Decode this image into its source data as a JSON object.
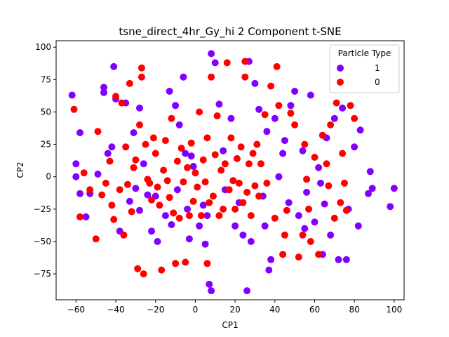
{
  "chart_data": {
    "type": "scatter",
    "title": "tsne_direct_4hr_Gy_hi 2 Component t-SNE",
    "xlabel": "CP1",
    "ylabel": "CP2",
    "xlim": [
      -70,
      105
    ],
    "ylim": [
      -95,
      105
    ],
    "xticks": [
      -60,
      -40,
      -20,
      0,
      20,
      40,
      60,
      80,
      100
    ],
    "yticks": [
      -75,
      -50,
      -25,
      0,
      25,
      50,
      75,
      100
    ],
    "grid": false,
    "legend": {
      "title": "Particle Type",
      "placement": "top-right"
    },
    "series": [
      {
        "name": "1",
        "color": "#8000ff",
        "points": [
          [
            -62,
            63
          ],
          [
            -58,
            34
          ],
          [
            -60,
            10
          ],
          [
            -60,
            0
          ],
          [
            -58,
            -13
          ],
          [
            -53,
            -13
          ],
          [
            -55,
            -31
          ],
          [
            -49,
            2
          ],
          [
            -46,
            69
          ],
          [
            -46,
            65
          ],
          [
            -44,
            18
          ],
          [
            -42,
            23
          ],
          [
            -41,
            85
          ],
          [
            -40,
            60
          ],
          [
            -38,
            -42
          ],
          [
            -35,
            57
          ],
          [
            -33,
            -19
          ],
          [
            -31,
            34
          ],
          [
            -30,
            -9
          ],
          [
            -28,
            53
          ],
          [
            -28,
            -26
          ],
          [
            -26,
            10
          ],
          [
            -24,
            -14
          ],
          [
            -22,
            -42
          ],
          [
            -20,
            -15
          ],
          [
            -19,
            -50
          ],
          [
            -15,
            -30
          ],
          [
            -13,
            66
          ],
          [
            -12,
            -37
          ],
          [
            -10,
            55
          ],
          [
            -9,
            -10
          ],
          [
            -8,
            40
          ],
          [
            -6,
            77
          ],
          [
            -5,
            18
          ],
          [
            -4,
            -25
          ],
          [
            -3,
            -48
          ],
          [
            -2,
            16
          ],
          [
            -1,
            8
          ],
          [
            2,
            -38
          ],
          [
            4,
            -22
          ],
          [
            5,
            -52
          ],
          [
            6,
            -30
          ],
          [
            7,
            -83
          ],
          [
            8,
            -88
          ],
          [
            8,
            95
          ],
          [
            10,
            88
          ],
          [
            12,
            56
          ],
          [
            14,
            20
          ],
          [
            15,
            -10
          ],
          [
            18,
            45
          ],
          [
            20,
            -38
          ],
          [
            22,
            -20
          ],
          [
            24,
            -45
          ],
          [
            26,
            -88
          ],
          [
            27,
            89
          ],
          [
            28,
            -50
          ],
          [
            30,
            72
          ],
          [
            32,
            52
          ],
          [
            34,
            -15
          ],
          [
            35,
            -38
          ],
          [
            36,
            35
          ],
          [
            37,
            -72
          ],
          [
            38,
            -64
          ],
          [
            40,
            45
          ],
          [
            42,
            0
          ],
          [
            44,
            18
          ],
          [
            45,
            28
          ],
          [
            47,
            -20
          ],
          [
            48,
            55
          ],
          [
            50,
            66
          ],
          [
            52,
            -30
          ],
          [
            54,
            20
          ],
          [
            55,
            -40
          ],
          [
            56,
            -12
          ],
          [
            58,
            63
          ],
          [
            60,
            -35
          ],
          [
            62,
            7
          ],
          [
            63,
            -5
          ],
          [
            64,
            -60
          ],
          [
            65,
            -21
          ],
          [
            66,
            30
          ],
          [
            68,
            -45
          ],
          [
            70,
            45
          ],
          [
            72,
            -64
          ],
          [
            74,
            53
          ],
          [
            76,
            -64
          ],
          [
            77,
            -25
          ],
          [
            80,
            23
          ],
          [
            82,
            -38
          ],
          [
            83,
            36
          ],
          [
            87,
            -13
          ],
          [
            88,
            4
          ],
          [
            89,
            -9
          ],
          [
            98,
            -23
          ],
          [
            100,
            -9
          ]
        ]
      },
      {
        "name": "0",
        "color": "#ff0000",
        "points": [
          [
            -61,
            52
          ],
          [
            -58,
            -31
          ],
          [
            -56,
            3
          ],
          [
            -53,
            -10
          ],
          [
            -50,
            -48
          ],
          [
            -49,
            35
          ],
          [
            -47,
            -14
          ],
          [
            -45,
            -5
          ],
          [
            -43,
            12
          ],
          [
            -42,
            -22
          ],
          [
            -41,
            -33
          ],
          [
            -40,
            62
          ],
          [
            -38,
            -10
          ],
          [
            -37,
            57
          ],
          [
            -36,
            -45
          ],
          [
            -35,
            23
          ],
          [
            -34,
            -6
          ],
          [
            -33,
            72
          ],
          [
            -32,
            -27
          ],
          [
            -31,
            7
          ],
          [
            -30,
            13
          ],
          [
            -29,
            -71
          ],
          [
            -28,
            40
          ],
          [
            -27,
            77
          ],
          [
            -27,
            84
          ],
          [
            -26,
            -75
          ],
          [
            -25,
            25
          ],
          [
            -24,
            -2
          ],
          [
            -23,
            -5
          ],
          [
            -22,
            -18
          ],
          [
            -21,
            30
          ],
          [
            -20,
            18
          ],
          [
            -19,
            -8
          ],
          [
            -18,
            -22
          ],
          [
            -17,
            -72
          ],
          [
            -16,
            5
          ],
          [
            -15,
            28
          ],
          [
            -14,
            -3
          ],
          [
            -13,
            -16
          ],
          [
            -12,
            45
          ],
          [
            -11,
            -28
          ],
          [
            -10,
            -67
          ],
          [
            -9,
            12
          ],
          [
            -8,
            -32
          ],
          [
            -7,
            22
          ],
          [
            -6,
            -4
          ],
          [
            -5,
            -66
          ],
          [
            -4,
            7
          ],
          [
            -3,
            -30
          ],
          [
            -2,
            26
          ],
          [
            -1,
            -19
          ],
          [
            0,
            3
          ],
          [
            1,
            -8
          ],
          [
            2,
            50
          ],
          [
            3,
            -30
          ],
          [
            4,
            13
          ],
          [
            5,
            -4
          ],
          [
            6,
            -67
          ],
          [
            6,
            30
          ],
          [
            7,
            -20
          ],
          [
            8,
            77
          ],
          [
            9,
            -15
          ],
          [
            10,
            17
          ],
          [
            11,
            47
          ],
          [
            12,
            -30
          ],
          [
            13,
            5
          ],
          [
            14,
            -25
          ],
          [
            15,
            10
          ],
          [
            16,
            88
          ],
          [
            17,
            -10
          ],
          [
            18,
            30
          ],
          [
            19,
            -3
          ],
          [
            20,
            -25
          ],
          [
            21,
            14
          ],
          [
            22,
            -5
          ],
          [
            23,
            23
          ],
          [
            24,
            -20
          ],
          [
            25,
            77
          ],
          [
            25,
            89
          ],
          [
            26,
            -12
          ],
          [
            27,
            10
          ],
          [
            28,
            -30
          ],
          [
            29,
            18
          ],
          [
            30,
            -7
          ],
          [
            31,
            25
          ],
          [
            32,
            -15
          ],
          [
            33,
            10
          ],
          [
            35,
            48
          ],
          [
            36,
            -5
          ],
          [
            38,
            70
          ],
          [
            40,
            -32
          ],
          [
            41,
            85
          ],
          [
            42,
            55
          ],
          [
            44,
            -60
          ],
          [
            45,
            -45
          ],
          [
            46,
            -26
          ],
          [
            48,
            49
          ],
          [
            50,
            40
          ],
          [
            52,
            -62
          ],
          [
            54,
            -45
          ],
          [
            55,
            25
          ],
          [
            56,
            -2
          ],
          [
            57,
            -25
          ],
          [
            58,
            -50
          ],
          [
            60,
            15
          ],
          [
            62,
            -60
          ],
          [
            64,
            32
          ],
          [
            66,
            10
          ],
          [
            67,
            -7
          ],
          [
            68,
            40
          ],
          [
            70,
            -32
          ],
          [
            71,
            57
          ],
          [
            73,
            -20
          ],
          [
            74,
            18
          ],
          [
            75,
            -5
          ],
          [
            76,
            -26
          ],
          [
            78,
            55
          ],
          [
            80,
            45
          ]
        ]
      }
    ]
  }
}
